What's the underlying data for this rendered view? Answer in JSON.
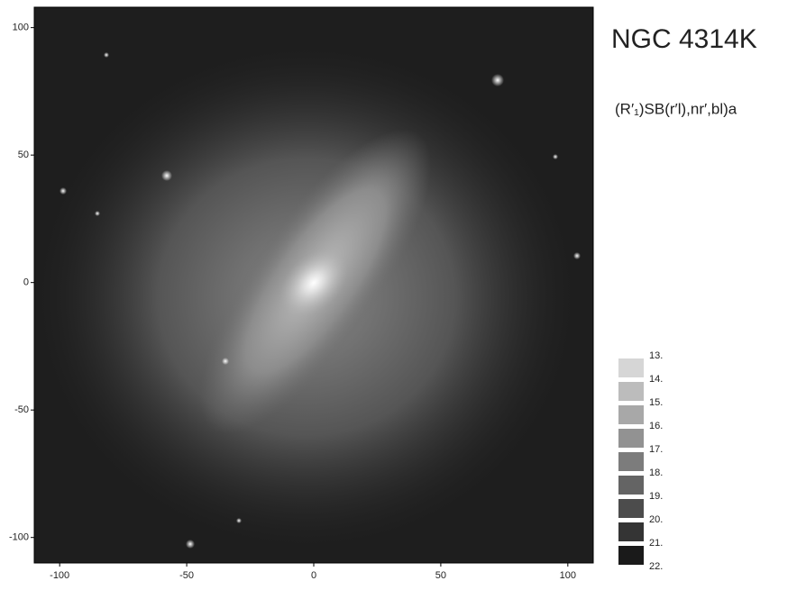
{
  "chart_data": {
    "type": "image",
    "title": "NGC 4314K",
    "subtitle": "(R′₁)SB(r′l),nr′,bl)a",
    "xlim": [
      -110,
      110
    ],
    "ylim": [
      -110,
      108
    ],
    "xticks": [
      -100,
      -50,
      0,
      50,
      100
    ],
    "yticks": [
      -100,
      -50,
      0,
      50,
      100
    ],
    "levels": [
      {
        "value": 13,
        "label": "13."
      },
      {
        "value": 14,
        "label": "14."
      },
      {
        "value": 15,
        "label": "15."
      },
      {
        "value": 16,
        "label": "16."
      },
      {
        "value": 17,
        "label": "17."
      },
      {
        "value": 18,
        "label": "18."
      },
      {
        "value": 19,
        "label": "19."
      },
      {
        "value": 20,
        "label": "20."
      },
      {
        "value": 21,
        "label": "21."
      },
      {
        "value": 22,
        "label": "22."
      }
    ],
    "level_colors": [
      "#d6d6d6",
      "#bcbcbc",
      "#a8a8a8",
      "#929292",
      "#7c7c7c",
      "#646464",
      "#4c4c4c",
      "#343434",
      "#1a1a1a"
    ]
  }
}
